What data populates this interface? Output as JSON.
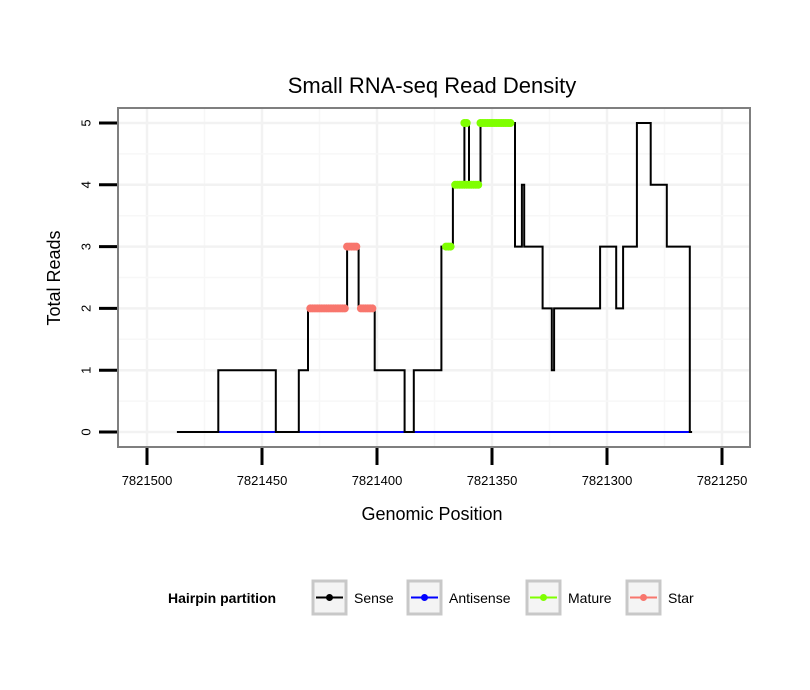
{
  "chart_data": {
    "type": "line",
    "title": "Small RNA-seq Read Density",
    "xlabel": "Genomic Position",
    "ylabel": "Total Reads",
    "xlim": [
      7821500,
      7821250
    ],
    "ylim": [
      0,
      5
    ],
    "x_reversed": true,
    "x_ticks": [
      7821500,
      7821450,
      7821400,
      7821350,
      7821300,
      7821250
    ],
    "y_ticks": [
      0,
      1,
      2,
      3,
      4,
      5
    ],
    "grid": true,
    "legend": {
      "title": "Hairpin partition",
      "placement": "bottom",
      "entries": [
        {
          "name": "Sense",
          "color": "#000000"
        },
        {
          "name": "Antisense",
          "color": "#0000ff"
        },
        {
          "name": "Mature",
          "color": "#7fff00"
        },
        {
          "name": "Star",
          "color": "#f8766d"
        }
      ]
    },
    "series": [
      {
        "name": "Sense",
        "color": "#000000",
        "style": "step-line",
        "points": [
          [
            7821487,
            0
          ],
          [
            7821469,
            0
          ],
          [
            7821469,
            1
          ],
          [
            7821444,
            1
          ],
          [
            7821444,
            0
          ],
          [
            7821434,
            0
          ],
          [
            7821434,
            1
          ],
          [
            7821430,
            1
          ],
          [
            7821430,
            2
          ],
          [
            7821413,
            2
          ],
          [
            7821413,
            3
          ],
          [
            7821408,
            3
          ],
          [
            7821408,
            2
          ],
          [
            7821401,
            2
          ],
          [
            7821401,
            1
          ],
          [
            7821388,
            1
          ],
          [
            7821388,
            0
          ],
          [
            7821384,
            0
          ],
          [
            7821384,
            1
          ],
          [
            7821372,
            1
          ],
          [
            7821372,
            3
          ],
          [
            7821367,
            3
          ],
          [
            7821367,
            4
          ],
          [
            7821362,
            4
          ],
          [
            7821362,
            5
          ],
          [
            7821360,
            5
          ],
          [
            7821360,
            4
          ],
          [
            7821355,
            4
          ],
          [
            7821355,
            5
          ],
          [
            7821340,
            5
          ],
          [
            7821340,
            3
          ],
          [
            7821337,
            3
          ],
          [
            7821337,
            4
          ],
          [
            7821336,
            4
          ],
          [
            7821336,
            3
          ],
          [
            7821328,
            3
          ],
          [
            7821328,
            2
          ],
          [
            7821324,
            2
          ],
          [
            7821324,
            1
          ],
          [
            7821323,
            1
          ],
          [
            7821323,
            2
          ],
          [
            7821303,
            2
          ],
          [
            7821303,
            3
          ],
          [
            7821296,
            3
          ],
          [
            7821296,
            2
          ],
          [
            7821293,
            2
          ],
          [
            7821293,
            3
          ],
          [
            7821287,
            3
          ],
          [
            7821287,
            5
          ],
          [
            7821281,
            5
          ],
          [
            7821281,
            4
          ],
          [
            7821274,
            4
          ],
          [
            7821274,
            3
          ],
          [
            7821264,
            3
          ],
          [
            7821264,
            0
          ],
          [
            7821263,
            0
          ]
        ]
      },
      {
        "name": "Antisense",
        "color": "#0000ff",
        "style": "line",
        "points": [
          [
            7821469,
            0
          ],
          [
            7821264,
            0
          ]
        ]
      },
      {
        "name": "Mature",
        "color": "#7fff00",
        "style": "points",
        "points": [
          [
            7821370,
            3
          ],
          [
            7821369,
            3
          ],
          [
            7821368,
            3
          ],
          [
            7821366,
            4
          ],
          [
            7821365,
            4
          ],
          [
            7821364,
            4
          ],
          [
            7821363,
            4
          ],
          [
            7821362,
            4
          ],
          [
            7821361,
            4
          ],
          [
            7821360,
            4
          ],
          [
            7821359,
            4
          ],
          [
            7821358,
            4
          ],
          [
            7821357,
            4
          ],
          [
            7821356,
            4
          ],
          [
            7821362,
            5
          ],
          [
            7821361,
            5
          ],
          [
            7821355,
            5
          ],
          [
            7821354,
            5
          ],
          [
            7821353,
            5
          ],
          [
            7821352,
            5
          ],
          [
            7821351,
            5
          ],
          [
            7821350,
            5
          ],
          [
            7821349,
            5
          ],
          [
            7821348,
            5
          ],
          [
            7821347,
            5
          ],
          [
            7821346,
            5
          ],
          [
            7821345,
            5
          ],
          [
            7821344,
            5
          ],
          [
            7821343,
            5
          ],
          [
            7821342,
            5
          ]
        ]
      },
      {
        "name": "Star",
        "color": "#f8766d",
        "style": "points",
        "points": [
          [
            7821429,
            2
          ],
          [
            7821428,
            2
          ],
          [
            7821427,
            2
          ],
          [
            7821426,
            2
          ],
          [
            7821425,
            2
          ],
          [
            7821424,
            2
          ],
          [
            7821423,
            2
          ],
          [
            7821422,
            2
          ],
          [
            7821421,
            2
          ],
          [
            7821420,
            2
          ],
          [
            7821419,
            2
          ],
          [
            7821418,
            2
          ],
          [
            7821417,
            2
          ],
          [
            7821416,
            2
          ],
          [
            7821415,
            2
          ],
          [
            7821414,
            2
          ],
          [
            7821413,
            3
          ],
          [
            7821412,
            3
          ],
          [
            7821411,
            3
          ],
          [
            7821410,
            3
          ],
          [
            7821409,
            3
          ],
          [
            7821407,
            2
          ],
          [
            7821406,
            2
          ],
          [
            7821405,
            2
          ],
          [
            7821404,
            2
          ],
          [
            7821403,
            2
          ],
          [
            7821402,
            2
          ]
        ]
      }
    ]
  }
}
